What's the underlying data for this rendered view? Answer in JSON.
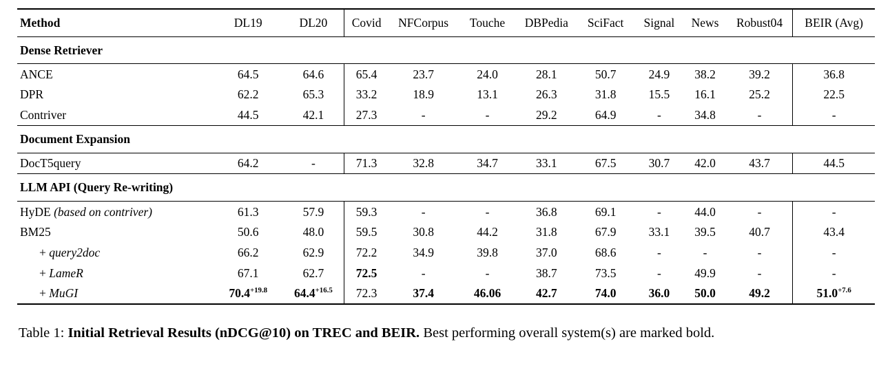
{
  "table": {
    "columns": [
      "Method",
      "DL19",
      "DL20",
      "Covid",
      "NFCorpus",
      "Touche",
      "DBPedia",
      "SciFact",
      "Signal",
      "News",
      "Robust04",
      "BEIR (Avg)"
    ],
    "sections": [
      {
        "title": "Dense Retriever",
        "rows": [
          {
            "method": {
              "name": "ANCE"
            },
            "values": [
              "64.5",
              "64.6",
              "65.4",
              "23.7",
              "24.0",
              "28.1",
              "50.7",
              "24.9",
              "38.2",
              "39.2",
              "36.8"
            ]
          },
          {
            "method": {
              "name": "DPR"
            },
            "values": [
              "62.2",
              "65.3",
              "33.2",
              "18.9",
              "13.1",
              "26.3",
              "31.8",
              "15.5",
              "16.1",
              "25.2",
              "22.5"
            ]
          },
          {
            "method": {
              "name": "Contriver"
            },
            "values": [
              "44.5",
              "42.1",
              "27.3",
              "-",
              "-",
              "29.2",
              "64.9",
              "-",
              "34.8",
              "-",
              "-"
            ]
          }
        ]
      },
      {
        "title": "Document Expansion",
        "rows": [
          {
            "method": {
              "name": "DocT5query"
            },
            "values": [
              "64.2",
              "-",
              "71.3",
              "32.8",
              "34.7",
              "33.1",
              "67.5",
              "30.7",
              "42.0",
              "43.7",
              "44.5"
            ]
          }
        ]
      },
      {
        "title": "LLM API (Query Re-writing)",
        "rows": [
          {
            "method": {
              "name": "HyDE",
              "note": "(based on contriver)"
            },
            "values": [
              "61.3",
              "57.9",
              "59.3",
              "-",
              "-",
              "36.8",
              "69.1",
              "-",
              "44.0",
              "-",
              "-"
            ]
          },
          {
            "method": {
              "name": "BM25"
            },
            "values": [
              "50.6",
              "48.0",
              "59.5",
              "30.8",
              "44.2",
              "31.8",
              "67.9",
              "33.1",
              "39.5",
              "40.7",
              "43.4"
            ]
          },
          {
            "method": {
              "name": "query2doc",
              "prefix": "+ ",
              "italic": true,
              "indent": true
            },
            "values": [
              "66.2",
              "62.9",
              "72.2",
              "34.9",
              "39.8",
              "37.0",
              "68.6",
              "-",
              "-",
              "-",
              "-"
            ]
          },
          {
            "method": {
              "name": "LameR",
              "prefix": "+ ",
              "italic": true,
              "indent": true
            },
            "values": [
              "67.1",
              "62.7",
              {
                "t": "72.5",
                "b": true
              },
              "-",
              "-",
              "38.7",
              "73.5",
              "-",
              "49.9",
              "-",
              "-"
            ]
          },
          {
            "method": {
              "name": "MuGI",
              "prefix": "+ ",
              "italic": true,
              "indent": true
            },
            "values": [
              {
                "t": "70.4",
                "b": true,
                "sup": "+19.8"
              },
              {
                "t": "64.4",
                "b": true,
                "sup": "+16.5"
              },
              "72.3",
              {
                "t": "37.4",
                "b": true
              },
              {
                "t": "46.06",
                "b": true
              },
              {
                "t": "42.7",
                "b": true
              },
              {
                "t": "74.0",
                "b": true
              },
              {
                "t": "36.0",
                "b": true
              },
              {
                "t": "50.0",
                "b": true
              },
              {
                "t": "49.2",
                "b": true
              },
              {
                "t": "51.0",
                "b": true,
                "sup": "+7.6"
              }
            ]
          }
        ]
      }
    ]
  },
  "caption": {
    "prefix": "Table 1: ",
    "bold": "Initial Retrieval Results (nDCG@10) on TREC and BEIR.",
    "rest": " Best performing overall system(s) are marked bold."
  }
}
